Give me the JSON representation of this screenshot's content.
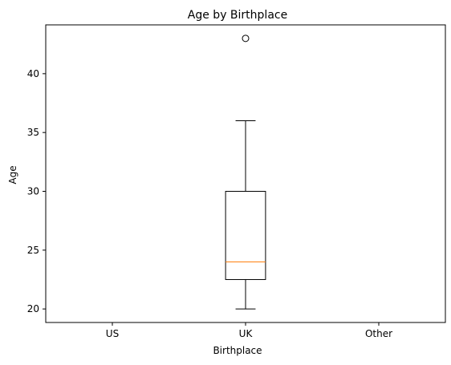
{
  "chart_data": {
    "type": "box",
    "title": "Age by Birthplace",
    "xlabel": "Birthplace",
    "ylabel": "Age",
    "categories": [
      "US",
      "UK",
      "Other"
    ],
    "ylim": [
      18.85,
      44.15
    ],
    "yticks": [
      20,
      25,
      30,
      35,
      40
    ],
    "ytick_labels": [
      "20",
      "25",
      "30",
      "35",
      "40"
    ],
    "grid": false,
    "boxes": [
      {
        "category": "US",
        "empty": true
      },
      {
        "category": "UK",
        "whisker_low": 20,
        "q1": 22.5,
        "median": 24,
        "q3": 30,
        "whisker_high": 36,
        "outliers": [
          43
        ]
      },
      {
        "category": "Other",
        "empty": true
      }
    ],
    "colors": {
      "box": "#000000",
      "median": "#ff7f0e",
      "whisker": "#000000",
      "outlier": "#000000"
    }
  }
}
